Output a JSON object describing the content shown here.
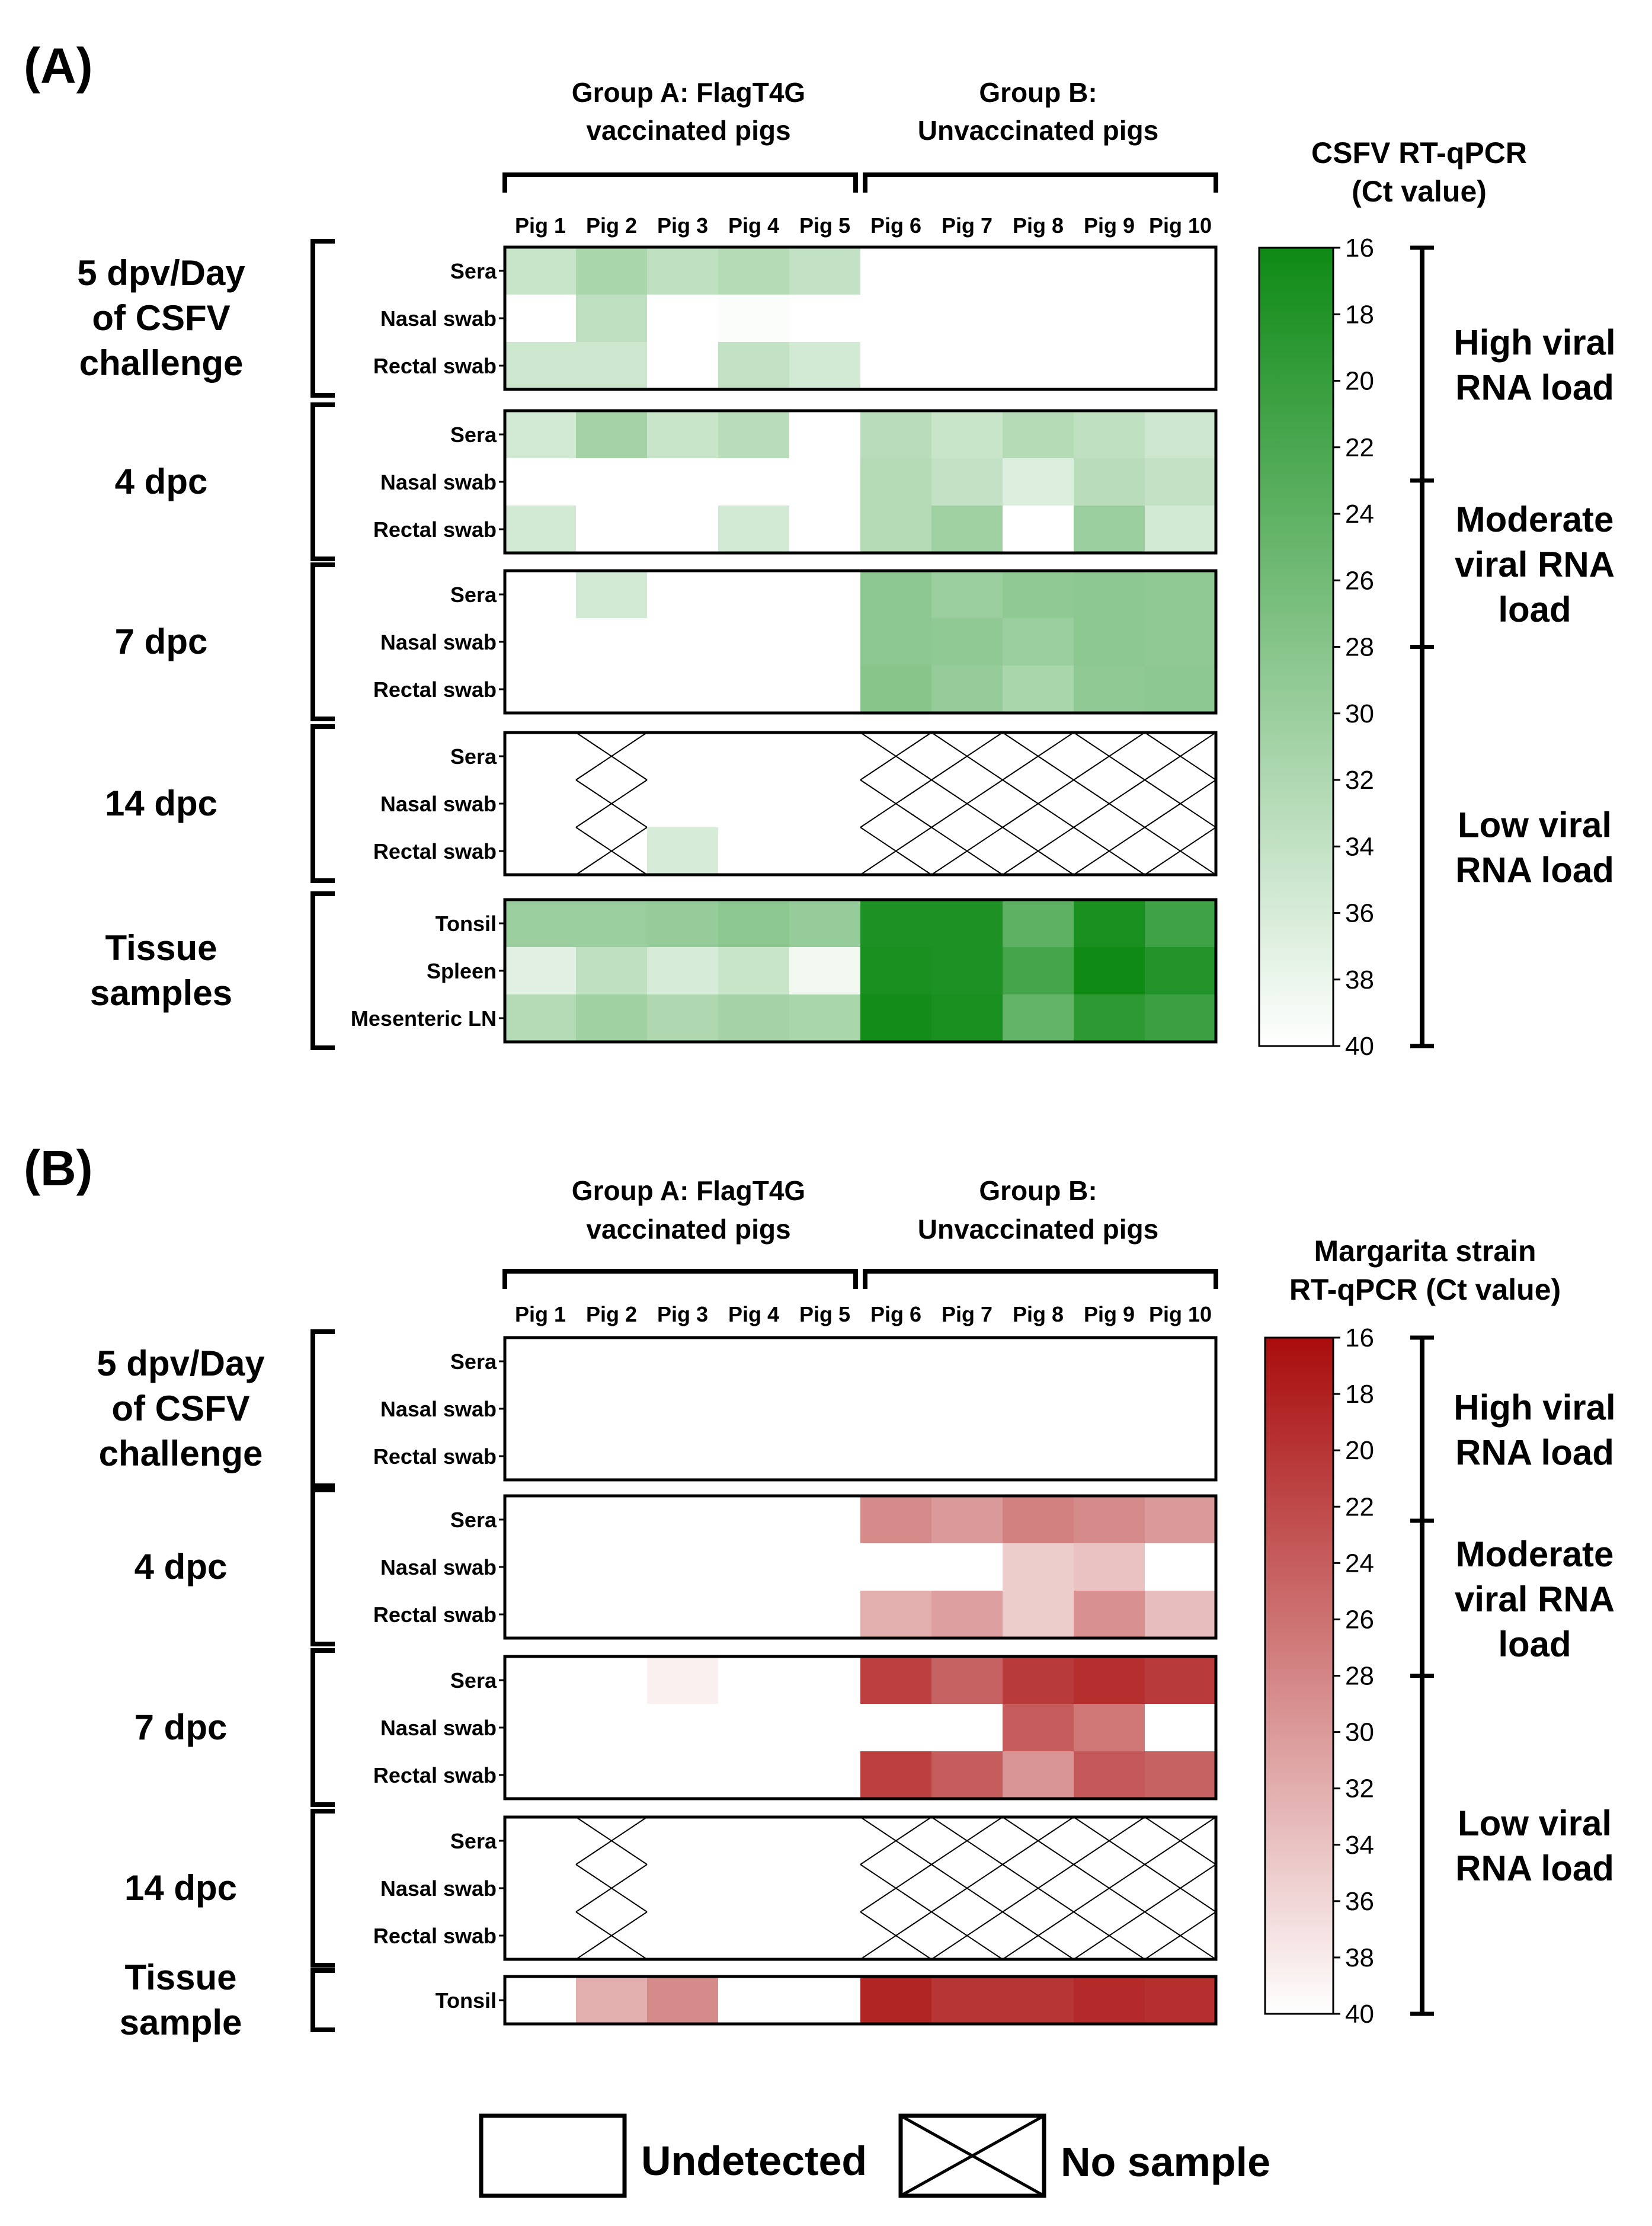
{
  "chart_data": [
    {
      "type": "heatmap",
      "panel_label": "(A)",
      "colormap_title": [
        "CSFV RT-qPCR",
        "(Ct value)"
      ],
      "color_high": "#0e8a15",
      "color_low": "#ffffff",
      "group_a": [
        "Group A: FlagT4G",
        "vaccinated pigs"
      ],
      "group_b": [
        "Group B:",
        "Unvaccinated pigs"
      ],
      "columns": [
        "Pig 1",
        "Pig 2",
        "Pig 3",
        "Pig 4",
        "Pig 5",
        "Pig 6",
        "Pig 7",
        "Pig 8",
        "Pig 9",
        "Pig 10"
      ],
      "colorbar_range": [
        16,
        40
      ],
      "colorbar_ticks": [
        "16",
        "18",
        "20",
        "22",
        "24",
        "26",
        "28",
        "30",
        "32",
        "34",
        "36",
        "38",
        "40"
      ],
      "load_brackets": [
        {
          "lines": [
            "High viral",
            "RNA load"
          ],
          "from": 16,
          "to": 23
        },
        {
          "lines": [
            "Moderate",
            "viral RNA",
            "load"
          ],
          "from": 23,
          "to": 28
        },
        {
          "lines": [
            "Low viral",
            "RNA load"
          ],
          "from": 28,
          "to": 40
        }
      ],
      "blocks": [
        {
          "label": [
            "5 dpv/Day",
            "of CSFV",
            "challenge"
          ],
          "rows": [
            "Sera",
            "Nasal swab",
            "Rectal swab"
          ],
          "values": [
            [
              34.5,
              31.5,
              33.5,
              32.5,
              34.0,
              null,
              null,
              null,
              null,
              null
            ],
            [
              null,
              33.5,
              null,
              39.5,
              null,
              null,
              null,
              null,
              null,
              null
            ],
            [
              35.0,
              35.0,
              null,
              34.0,
              35.5,
              null,
              null,
              null,
              null,
              null
            ]
          ],
          "nosample": [
            [
              0,
              0,
              0,
              0,
              0,
              0,
              0,
              0,
              0,
              0
            ],
            [
              0,
              0,
              0,
              0,
              0,
              0,
              0,
              0,
              0,
              0
            ],
            [
              0,
              0,
              0,
              0,
              0,
              0,
              0,
              0,
              0,
              0
            ]
          ]
        },
        {
          "label": [
            "4 dpc"
          ],
          "rows": [
            "Sera",
            "Nasal swab",
            "Rectal swab"
          ],
          "values": [
            [
              35.5,
              31.0,
              34.5,
              33.0,
              null,
              33.0,
              34.5,
              32.5,
              33.5,
              35.0
            ],
            [
              null,
              null,
              null,
              null,
              null,
              32.5,
              34.0,
              36.5,
              33.0,
              34.0
            ],
            [
              35.5,
              null,
              null,
              35.5,
              null,
              32.5,
              30.5,
              null,
              30.0,
              35.5
            ]
          ],
          "nosample": [
            [
              0,
              0,
              0,
              0,
              0,
              0,
              0,
              0,
              0,
              0
            ],
            [
              0,
              0,
              0,
              0,
              0,
              0,
              0,
              0,
              0,
              0
            ],
            [
              0,
              0,
              0,
              0,
              0,
              0,
              0,
              0,
              0,
              0
            ]
          ]
        },
        {
          "label": [
            "7 dpc"
          ],
          "rows": [
            "Sera",
            "Nasal swab",
            "Rectal swab"
          ],
          "values": [
            [
              null,
              35.5,
              null,
              null,
              null,
              28.5,
              30.0,
              29.0,
              28.5,
              29.0
            ],
            [
              null,
              null,
              null,
              null,
              null,
              28.5,
              29.0,
              30.0,
              28.5,
              29.0
            ],
            [
              null,
              null,
              null,
              null,
              null,
              28.0,
              29.5,
              31.5,
              29.0,
              28.5
            ]
          ],
          "nosample": [
            [
              0,
              0,
              0,
              0,
              0,
              0,
              0,
              0,
              0,
              0
            ],
            [
              0,
              0,
              0,
              0,
              0,
              0,
              0,
              0,
              0,
              0
            ],
            [
              0,
              0,
              0,
              0,
              0,
              0,
              0,
              0,
              0,
              0
            ]
          ]
        },
        {
          "label": [
            "14 dpc"
          ],
          "rows": [
            "Sera",
            "Nasal swab",
            "Rectal swab"
          ],
          "values": [
            [
              null,
              null,
              null,
              null,
              null,
              null,
              null,
              null,
              null,
              null
            ],
            [
              null,
              null,
              null,
              null,
              null,
              null,
              null,
              null,
              null,
              null
            ],
            [
              null,
              null,
              36.0,
              null,
              null,
              null,
              null,
              null,
              null,
              null
            ]
          ],
          "nosample": [
            [
              0,
              1,
              0,
              0,
              0,
              1,
              1,
              1,
              1,
              1
            ],
            [
              0,
              1,
              0,
              0,
              0,
              1,
              1,
              1,
              1,
              1
            ],
            [
              0,
              1,
              0,
              0,
              0,
              1,
              1,
              1,
              1,
              1
            ]
          ]
        },
        {
          "label": [
            "Tissue",
            "samples"
          ],
          "rows": [
            "Tonsil",
            "Spleen",
            "Mesenteric LN"
          ],
          "values": [
            [
              30.0,
              30.0,
              29.5,
              28.5,
              29.5,
              17.5,
              17.5,
              24.0,
              17.0,
              21.0
            ],
            [
              37.0,
              33.5,
              36.0,
              34.5,
              38.5,
              17.0,
              17.5,
              21.5,
              16.0,
              18.0
            ],
            [
              32.5,
              30.5,
              32.0,
              31.0,
              31.5,
              16.5,
              17.0,
              24.5,
              19.0,
              20.5
            ]
          ],
          "nosample": [
            [
              0,
              0,
              0,
              0,
              0,
              0,
              0,
              0,
              0,
              0
            ],
            [
              0,
              0,
              0,
              0,
              0,
              0,
              0,
              0,
              0,
              0
            ],
            [
              0,
              0,
              0,
              0,
              0,
              0,
              0,
              0,
              0,
              0
            ]
          ]
        }
      ]
    },
    {
      "type": "heatmap",
      "panel_label": "(B)",
      "colormap_title": [
        "Margarita strain",
        "RT-qPCR (Ct value)"
      ],
      "color_high": "#a90c0c",
      "color_low": "#ffffff",
      "group_a": [
        "Group A: FlagT4G",
        "vaccinated pigs"
      ],
      "group_b": [
        "Group B:",
        "Unvaccinated pigs"
      ],
      "columns": [
        "Pig 1",
        "Pig 2",
        "Pig 3",
        "Pig 4",
        "Pig 5",
        "Pig 6",
        "Pig 7",
        "Pig 8",
        "Pig 9",
        "Pig 10"
      ],
      "colorbar_range": [
        16,
        40
      ],
      "colorbar_ticks": [
        "16",
        "18",
        "20",
        "22",
        "24",
        "26",
        "28",
        "30",
        "32",
        "34",
        "36",
        "38",
        "40"
      ],
      "load_brackets": [
        {
          "lines": [
            "High viral",
            "RNA load"
          ],
          "from": 16,
          "to": 22.5
        },
        {
          "lines": [
            "Moderate",
            "viral RNA",
            "load"
          ],
          "from": 22.5,
          "to": 28
        },
        {
          "lines": [
            "Low viral",
            "RNA load"
          ],
          "from": 28,
          "to": 40
        }
      ],
      "blocks": [
        {
          "label": [
            "5 dpv/Day",
            "of CSFV",
            "challenge"
          ],
          "rows": [
            "Sera",
            "Nasal swab",
            "Rectal swab"
          ],
          "values": [
            [
              null,
              null,
              null,
              null,
              null,
              null,
              null,
              null,
              null,
              null
            ],
            [
              null,
              null,
              null,
              null,
              null,
              null,
              null,
              null,
              null,
              null
            ],
            [
              null,
              null,
              null,
              null,
              null,
              null,
              null,
              null,
              null,
              null
            ]
          ],
          "nosample": [
            [
              0,
              0,
              0,
              0,
              0,
              0,
              0,
              0,
              0,
              0
            ],
            [
              0,
              0,
              0,
              0,
              0,
              0,
              0,
              0,
              0,
              0
            ],
            [
              0,
              0,
              0,
              0,
              0,
              0,
              0,
              0,
              0,
              0
            ]
          ]
        },
        {
          "label": [
            "4 dpc"
          ],
          "rows": [
            "Sera",
            "Nasal swab",
            "Rectal swab"
          ],
          "values": [
            [
              null,
              null,
              null,
              null,
              null,
              28.5,
              30.0,
              27.5,
              28.5,
              30.0
            ],
            [
              null,
              null,
              null,
              null,
              null,
              null,
              null,
              35.0,
              34.0,
              null
            ],
            [
              null,
              null,
              null,
              null,
              null,
              32.0,
              30.5,
              35.0,
              29.0,
              33.5
            ]
          ],
          "nosample": [
            [
              0,
              0,
              0,
              0,
              0,
              0,
              0,
              0,
              0,
              0
            ],
            [
              0,
              0,
              0,
              0,
              0,
              0,
              0,
              0,
              0,
              0
            ],
            [
              0,
              0,
              0,
              0,
              0,
              0,
              0,
              0,
              0,
              0
            ]
          ]
        },
        {
          "label": [
            "7 dpc"
          ],
          "rows": [
            "Sera",
            "Nasal swab",
            "Rectal swab"
          ],
          "values": [
            [
              null,
              null,
              38.5,
              null,
              null,
              21.0,
              24.5,
              20.5,
              19.5,
              20.5
            ],
            [
              null,
              null,
              null,
              null,
              null,
              null,
              null,
              24.0,
              26.5,
              null
            ],
            [
              null,
              null,
              null,
              null,
              null,
              21.0,
              24.0,
              29.5,
              23.5,
              24.5
            ]
          ],
          "nosample": [
            [
              0,
              0,
              0,
              0,
              0,
              0,
              0,
              0,
              0,
              0
            ],
            [
              0,
              0,
              0,
              0,
              0,
              0,
              0,
              0,
              0,
              0
            ],
            [
              0,
              0,
              0,
              0,
              0,
              0,
              0,
              0,
              0,
              0
            ]
          ]
        },
        {
          "label": [
            "14 dpc"
          ],
          "rows": [
            "Sera",
            "Nasal swab",
            "Rectal swab"
          ],
          "values": [
            [
              null,
              null,
              null,
              null,
              null,
              null,
              null,
              null,
              null,
              null
            ],
            [
              null,
              null,
              null,
              null,
              null,
              null,
              null,
              null,
              null,
              null
            ],
            [
              null,
              null,
              null,
              null,
              null,
              null,
              null,
              null,
              null,
              null
            ]
          ],
          "nosample": [
            [
              0,
              1,
              0,
              0,
              0,
              1,
              1,
              1,
              1,
              1
            ],
            [
              0,
              1,
              0,
              0,
              0,
              1,
              1,
              1,
              1,
              1
            ],
            [
              0,
              1,
              0,
              0,
              0,
              1,
              1,
              1,
              1,
              1
            ]
          ]
        },
        {
          "label": [
            "Tissue",
            "sample"
          ],
          "rows": [
            "Tonsil"
          ],
          "values": [
            [
              null,
              32.0,
              28.5,
              null,
              null,
              18.5,
              20.0,
              20.0,
              19.0,
              19.5
            ]
          ],
          "nosample": [
            [
              0,
              0,
              0,
              0,
              0,
              0,
              0,
              0,
              0,
              0
            ]
          ]
        }
      ]
    }
  ],
  "legend": {
    "undetected": "Undetected",
    "nosample": "No sample"
  }
}
